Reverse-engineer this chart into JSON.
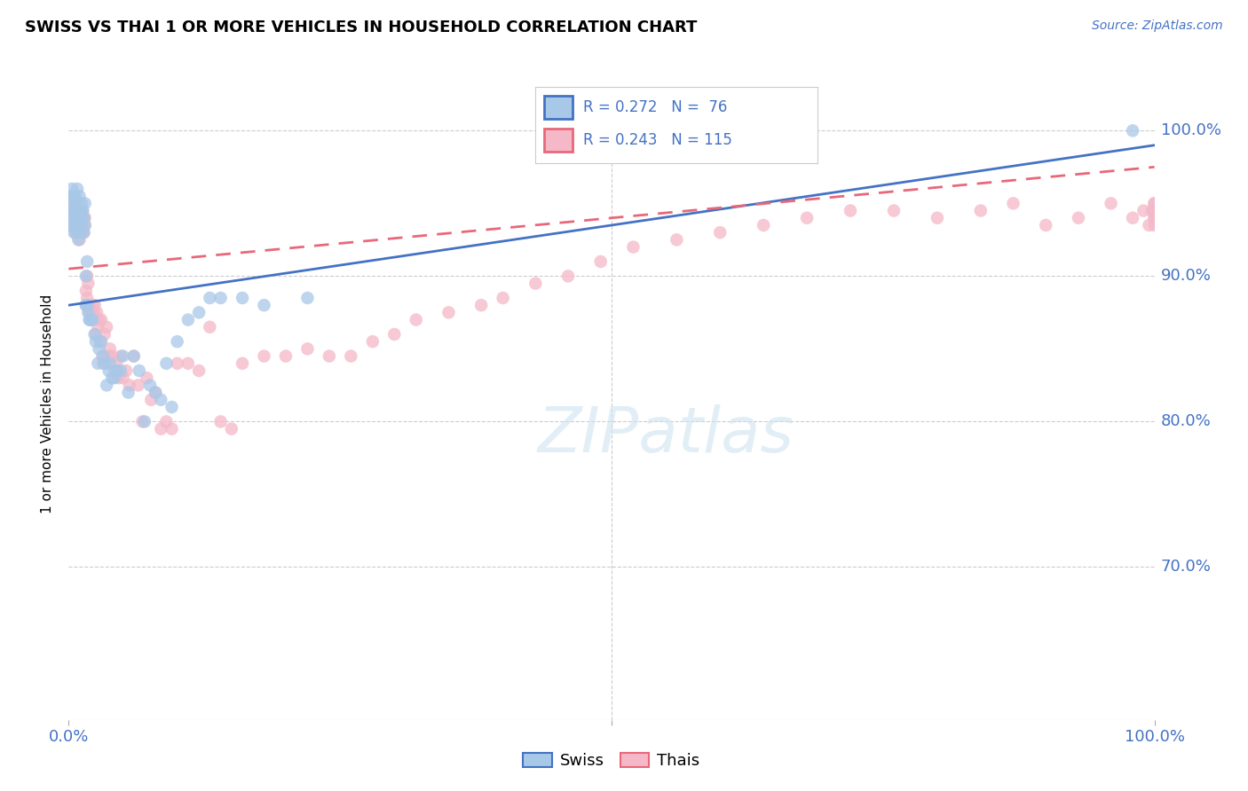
{
  "title": "SWISS VS THAI 1 OR MORE VEHICLES IN HOUSEHOLD CORRELATION CHART",
  "source": "Source: ZipAtlas.com",
  "ylabel": "1 or more Vehicles in Household",
  "ytick_labels": [
    "100.0%",
    "90.0%",
    "80.0%",
    "70.0%"
  ],
  "ytick_values": [
    1.0,
    0.9,
    0.8,
    0.7
  ],
  "xlim": [
    0.0,
    1.0
  ],
  "ylim": [
    0.595,
    1.03
  ],
  "swiss_r": 0.272,
  "swiss_n": 76,
  "thai_r": 0.243,
  "thai_n": 115,
  "swiss_color": "#a8c8e8",
  "thai_color": "#f4b8c8",
  "swiss_line_color": "#4472c4",
  "thai_line_color": "#e8687a",
  "legend_swiss": "Swiss",
  "legend_thai": "Thais",
  "swiss_x": [
    0.001,
    0.002,
    0.002,
    0.003,
    0.003,
    0.003,
    0.004,
    0.004,
    0.005,
    0.005,
    0.005,
    0.006,
    0.006,
    0.006,
    0.007,
    0.007,
    0.007,
    0.008,
    0.008,
    0.008,
    0.009,
    0.009,
    0.01,
    0.01,
    0.01,
    0.011,
    0.011,
    0.012,
    0.012,
    0.013,
    0.013,
    0.014,
    0.014,
    0.015,
    0.015,
    0.016,
    0.016,
    0.017,
    0.017,
    0.018,
    0.019,
    0.02,
    0.022,
    0.024,
    0.025,
    0.027,
    0.028,
    0.03,
    0.032,
    0.033,
    0.035,
    0.037,
    0.038,
    0.04,
    0.042,
    0.045,
    0.048,
    0.05,
    0.055,
    0.06,
    0.065,
    0.07,
    0.075,
    0.08,
    0.085,
    0.09,
    0.095,
    0.1,
    0.11,
    0.12,
    0.13,
    0.14,
    0.16,
    0.18,
    0.22,
    0.98
  ],
  "swiss_y": [
    0.935,
    0.945,
    0.955,
    0.94,
    0.95,
    0.96,
    0.935,
    0.945,
    0.93,
    0.945,
    0.955,
    0.935,
    0.945,
    0.955,
    0.93,
    0.94,
    0.95,
    0.935,
    0.945,
    0.96,
    0.925,
    0.94,
    0.935,
    0.945,
    0.955,
    0.93,
    0.945,
    0.935,
    0.95,
    0.94,
    0.945,
    0.93,
    0.94,
    0.935,
    0.95,
    0.88,
    0.9,
    0.88,
    0.91,
    0.875,
    0.87,
    0.87,
    0.87,
    0.86,
    0.855,
    0.84,
    0.85,
    0.855,
    0.845,
    0.84,
    0.825,
    0.835,
    0.84,
    0.83,
    0.83,
    0.835,
    0.835,
    0.845,
    0.82,
    0.845,
    0.835,
    0.8,
    0.825,
    0.82,
    0.815,
    0.84,
    0.81,
    0.855,
    0.87,
    0.875,
    0.885,
    0.885,
    0.885,
    0.88,
    0.885,
    1.0
  ],
  "thai_x": [
    0.001,
    0.002,
    0.002,
    0.003,
    0.003,
    0.004,
    0.004,
    0.005,
    0.005,
    0.006,
    0.006,
    0.007,
    0.007,
    0.008,
    0.008,
    0.009,
    0.009,
    0.01,
    0.01,
    0.011,
    0.011,
    0.012,
    0.012,
    0.013,
    0.013,
    0.014,
    0.014,
    0.015,
    0.015,
    0.016,
    0.016,
    0.017,
    0.017,
    0.018,
    0.018,
    0.019,
    0.019,
    0.02,
    0.021,
    0.022,
    0.023,
    0.024,
    0.025,
    0.026,
    0.027,
    0.028,
    0.029,
    0.03,
    0.031,
    0.032,
    0.033,
    0.035,
    0.037,
    0.038,
    0.04,
    0.042,
    0.044,
    0.046,
    0.048,
    0.05,
    0.053,
    0.056,
    0.06,
    0.064,
    0.068,
    0.072,
    0.076,
    0.08,
    0.085,
    0.09,
    0.095,
    0.1,
    0.11,
    0.12,
    0.13,
    0.14,
    0.15,
    0.16,
    0.18,
    0.2,
    0.22,
    0.24,
    0.26,
    0.28,
    0.3,
    0.32,
    0.35,
    0.38,
    0.4,
    0.43,
    0.46,
    0.49,
    0.52,
    0.56,
    0.6,
    0.64,
    0.68,
    0.72,
    0.76,
    0.8,
    0.84,
    0.87,
    0.9,
    0.93,
    0.96,
    0.98,
    0.99,
    0.995,
    0.998,
    1.0,
    1.0,
    1.0,
    1.0,
    1.0,
    1.0
  ],
  "thai_y": [
    0.94,
    0.935,
    0.95,
    0.935,
    0.945,
    0.935,
    0.94,
    0.95,
    0.935,
    0.93,
    0.945,
    0.935,
    0.945,
    0.93,
    0.94,
    0.935,
    0.94,
    0.945,
    0.925,
    0.935,
    0.945,
    0.935,
    0.94,
    0.93,
    0.945,
    0.94,
    0.93,
    0.935,
    0.94,
    0.88,
    0.89,
    0.885,
    0.9,
    0.88,
    0.895,
    0.875,
    0.88,
    0.87,
    0.875,
    0.88,
    0.875,
    0.88,
    0.86,
    0.875,
    0.865,
    0.87,
    0.855,
    0.87,
    0.845,
    0.84,
    0.86,
    0.865,
    0.845,
    0.85,
    0.845,
    0.835,
    0.84,
    0.83,
    0.845,
    0.83,
    0.835,
    0.825,
    0.845,
    0.825,
    0.8,
    0.83,
    0.815,
    0.82,
    0.795,
    0.8,
    0.795,
    0.84,
    0.84,
    0.835,
    0.865,
    0.8,
    0.795,
    0.84,
    0.845,
    0.845,
    0.85,
    0.845,
    0.845,
    0.855,
    0.86,
    0.87,
    0.875,
    0.88,
    0.885,
    0.895,
    0.9,
    0.91,
    0.92,
    0.925,
    0.93,
    0.935,
    0.94,
    0.945,
    0.945,
    0.94,
    0.945,
    0.95,
    0.935,
    0.94,
    0.95,
    0.94,
    0.945,
    0.935,
    0.945,
    0.95,
    0.94,
    0.935,
    0.945,
    0.94,
    0.95
  ],
  "swiss_trendline_x": [
    0.0,
    1.0
  ],
  "swiss_trendline_y": [
    0.88,
    0.99
  ],
  "thai_trendline_x": [
    0.0,
    1.0
  ],
  "thai_trendline_y": [
    0.905,
    0.975
  ],
  "watermark_text": "ZIPatlas",
  "background_color": "#ffffff",
  "grid_color": "#cccccc"
}
